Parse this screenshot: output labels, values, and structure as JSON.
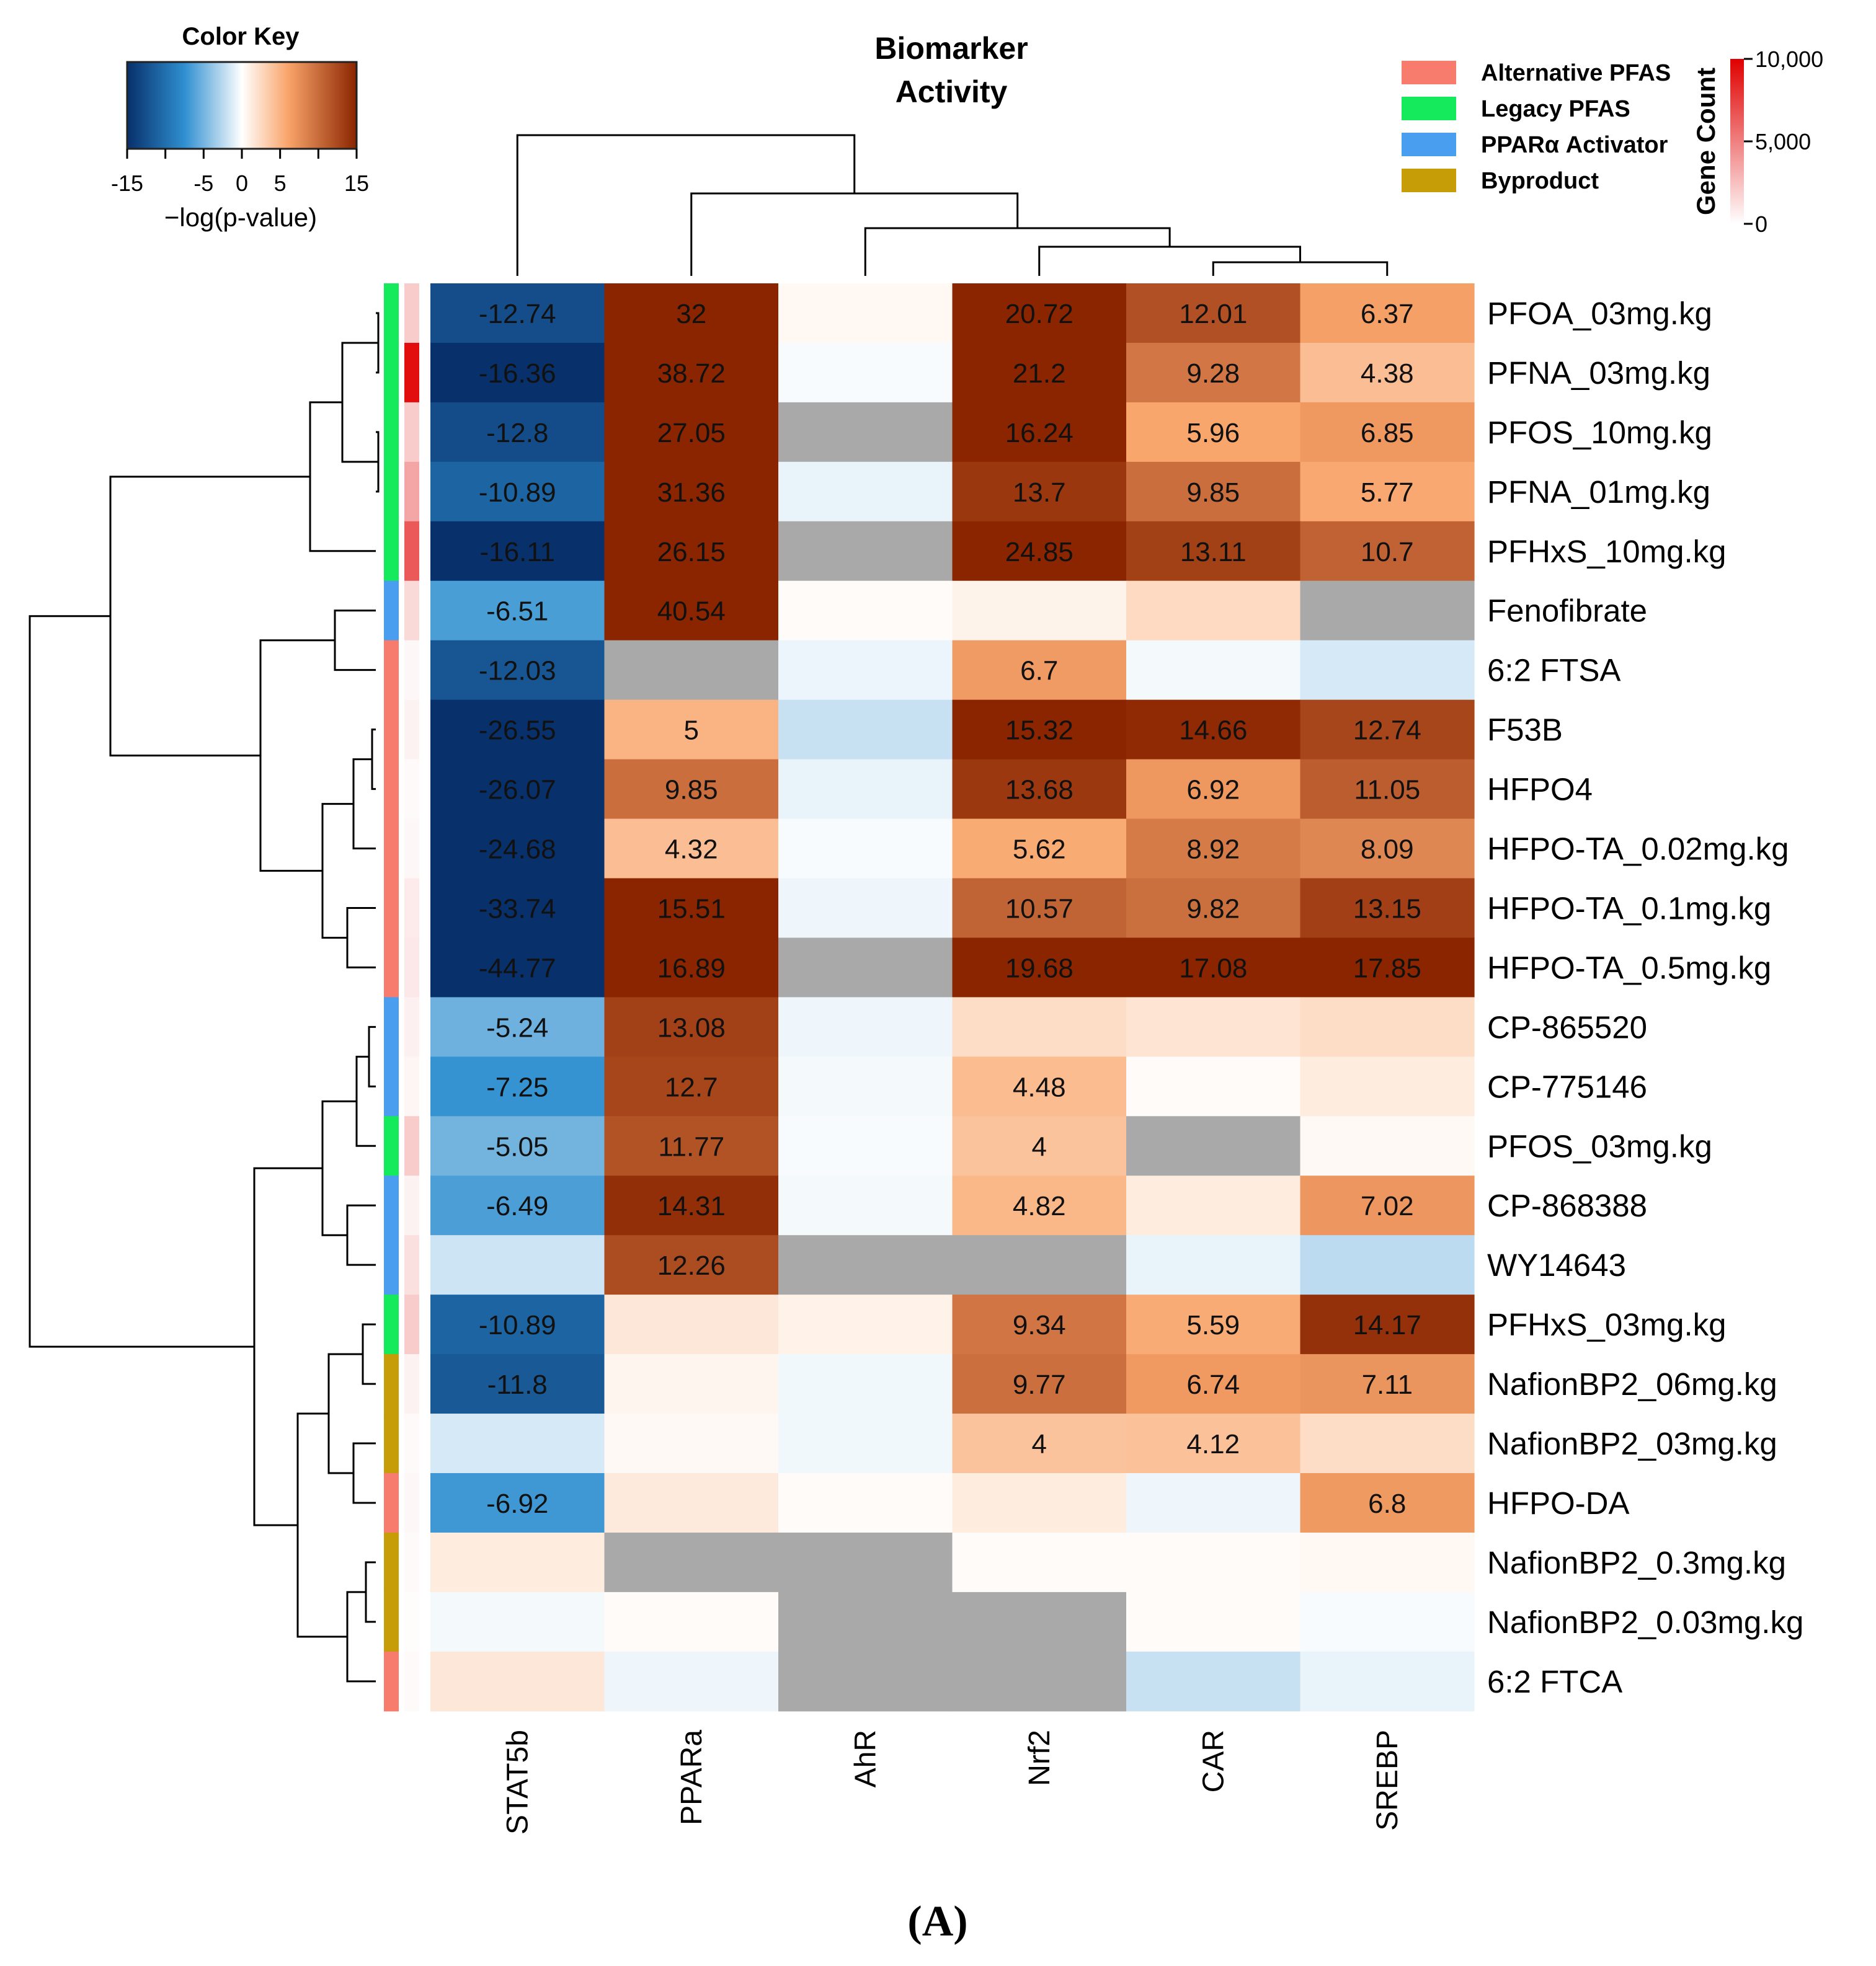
{
  "chart_data": {
    "type": "heatmap",
    "title": "Biomarker Activity",
    "panel_label": "(A)",
    "columns": [
      "STAT5b",
      "PPARa",
      "AhR",
      "Nrf2",
      "CAR",
      "SREBP"
    ],
    "rows": [
      {
        "label": "PFOA_03mg.kg",
        "group": "Legacy PFAS",
        "gene_count": 2000,
        "values": [
          -12.74,
          32,
          0.5,
          20.72,
          12.01,
          6.37
        ],
        "shown": [
          true,
          true,
          false,
          true,
          true,
          true
        ]
      },
      {
        "label": "PFNA_03mg.kg",
        "group": "Legacy PFAS",
        "gene_count": 9500,
        "values": [
          -16.36,
          38.72,
          -0.3,
          21.2,
          9.28,
          4.38
        ],
        "shown": [
          true,
          true,
          false,
          true,
          true,
          true
        ]
      },
      {
        "label": "PFOS_10mg.kg",
        "group": "Legacy PFAS",
        "gene_count": 2000,
        "values": [
          -12.8,
          27.05,
          null,
          16.24,
          5.96,
          6.85
        ],
        "shown": [
          true,
          true,
          false,
          true,
          true,
          true
        ]
      },
      {
        "label": "PFNA_01mg.kg",
        "group": "Legacy PFAS",
        "gene_count": 3500,
        "values": [
          -10.89,
          31.36,
          -0.8,
          13.7,
          9.85,
          5.77
        ],
        "shown": [
          true,
          true,
          false,
          true,
          true,
          true
        ]
      },
      {
        "label": "PFHxS_10mg.kg",
        "group": "Legacy PFAS",
        "gene_count": 6500,
        "values": [
          -16.11,
          26.15,
          null,
          24.85,
          13.11,
          10.7
        ],
        "shown": [
          true,
          true,
          false,
          true,
          true,
          true
        ]
      },
      {
        "label": "Fenofibrate",
        "group": "PPARα Activator",
        "gene_count": 1500,
        "values": [
          -6.51,
          40.54,
          0.3,
          0.8,
          2.5,
          null
        ],
        "shown": [
          true,
          true,
          false,
          false,
          false,
          false
        ]
      },
      {
        "label": "6:2 FTSA",
        "group": "Alternative PFAS",
        "gene_count": 300,
        "values": [
          -12.03,
          null,
          -0.7,
          6.7,
          -0.4,
          -1.5
        ],
        "shown": [
          true,
          false,
          false,
          true,
          false,
          false
        ]
      },
      {
        "label": "F53B",
        "group": "Alternative PFAS",
        "gene_count": 500,
        "values": [
          -26.55,
          5,
          -2,
          15.32,
          14.66,
          12.74
        ],
        "shown": [
          true,
          true,
          false,
          true,
          true,
          true
        ]
      },
      {
        "label": "HFPO4",
        "group": "Alternative PFAS",
        "gene_count": 200,
        "values": [
          -26.07,
          9.85,
          -0.8,
          13.68,
          6.92,
          11.05
        ],
        "shown": [
          true,
          true,
          false,
          true,
          true,
          true
        ]
      },
      {
        "label": "HFPO-TA_0.02mg.kg",
        "group": "Alternative PFAS",
        "gene_count": 300,
        "values": [
          -24.68,
          4.32,
          -0.3,
          5.62,
          8.92,
          8.09
        ],
        "shown": [
          true,
          true,
          false,
          true,
          true,
          true
        ]
      },
      {
        "label": "HFPO-TA_0.1mg.kg",
        "group": "Alternative PFAS",
        "gene_count": 800,
        "values": [
          -33.74,
          15.51,
          -0.6,
          10.57,
          9.82,
          13.15
        ],
        "shown": [
          true,
          true,
          false,
          true,
          true,
          true
        ]
      },
      {
        "label": "HFPO-TA_0.5mg.kg",
        "group": "Alternative PFAS",
        "gene_count": 900,
        "values": [
          -44.77,
          16.89,
          null,
          19.68,
          17.08,
          17.85
        ],
        "shown": [
          true,
          true,
          false,
          true,
          true,
          true
        ]
      },
      {
        "label": "CP-865520",
        "group": "PPARα Activator",
        "gene_count": 600,
        "values": [
          -5.24,
          13.08,
          -0.6,
          2.3,
          1.8,
          2.3
        ],
        "shown": [
          true,
          true,
          false,
          false,
          false,
          false
        ]
      },
      {
        "label": "CP-775146",
        "group": "PPARα Activator",
        "gene_count": 400,
        "values": [
          -7.25,
          12.7,
          -0.4,
          4.48,
          0.3,
          1.3
        ],
        "shown": [
          true,
          true,
          false,
          true,
          false,
          false
        ]
      },
      {
        "label": "PFOS_03mg.kg",
        "group": "Legacy PFAS",
        "gene_count": 2000,
        "values": [
          -5.05,
          11.77,
          -0.3,
          4,
          null,
          0.4
        ],
        "shown": [
          true,
          true,
          false,
          true,
          false,
          false
        ]
      },
      {
        "label": "CP-868388",
        "group": "PPARα Activator",
        "gene_count": 500,
        "values": [
          -6.49,
          14.31,
          -0.4,
          4.82,
          1.3,
          7.02
        ],
        "shown": [
          true,
          true,
          false,
          true,
          false,
          true
        ]
      },
      {
        "label": "WY14643",
        "group": "PPARα Activator",
        "gene_count": 1200,
        "values": [
          -1.8,
          12.26,
          null,
          null,
          -0.8,
          -2.4
        ],
        "shown": [
          false,
          true,
          false,
          false,
          false,
          false
        ]
      },
      {
        "label": "PFHxS_03mg.kg",
        "group": "Legacy PFAS",
        "gene_count": 2000,
        "values": [
          -10.89,
          1.6,
          0.9,
          9.34,
          5.59,
          14.17
        ],
        "shown": [
          true,
          false,
          false,
          true,
          true,
          true
        ]
      },
      {
        "label": "NafionBP2_06mg.kg",
        "group": "Byproduct",
        "gene_count": 500,
        "values": [
          -11.8,
          0.7,
          -0.5,
          9.77,
          6.74,
          7.11
        ],
        "shown": [
          true,
          false,
          false,
          true,
          true,
          true
        ]
      },
      {
        "label": "NafionBP2_03mg.kg",
        "group": "Byproduct",
        "gene_count": 200,
        "values": [
          -1.5,
          0.4,
          -0.5,
          4,
          4.12,
          2.3
        ],
        "shown": [
          false,
          false,
          false,
          true,
          true,
          false
        ]
      },
      {
        "label": "HFPO-DA",
        "group": "Alternative PFAS",
        "gene_count": 300,
        "values": [
          -6.92,
          1.4,
          0.3,
          1.3,
          -0.6,
          6.8
        ],
        "shown": [
          true,
          false,
          false,
          false,
          false,
          true
        ]
      },
      {
        "label": "NafionBP2_0.3mg.kg",
        "group": "Byproduct",
        "gene_count": 200,
        "values": [
          1.3,
          null,
          null,
          0.3,
          0.3,
          0.5
        ],
        "shown": [
          false,
          false,
          false,
          false,
          false,
          false
        ]
      },
      {
        "label": "NafionBP2_0.03mg.kg",
        "group": "Byproduct",
        "gene_count": 100,
        "values": [
          -0.4,
          0.3,
          null,
          null,
          0.3,
          -0.3
        ],
        "shown": [
          false,
          false,
          false,
          false,
          false,
          false
        ]
      },
      {
        "label": "6:2 FTCA",
        "group": "Alternative PFAS",
        "gene_count": 200,
        "values": [
          1.6,
          -0.6,
          null,
          null,
          -2,
          -0.8
        ],
        "shown": [
          false,
          false,
          false,
          false,
          false,
          false
        ]
      }
    ],
    "color_key": {
      "title": "Color Key",
      "xlabel": "−log(p-value)",
      "range": [
        -15,
        15
      ],
      "ticks": [
        -15,
        -5,
        0,
        5,
        15
      ],
      "ticks_unlabeled": [
        -10,
        10
      ],
      "colors": {
        "low": "#08306b",
        "mid_low": "#2f8fd0",
        "mid": "#ffffff",
        "mid_high": "#f9a56b",
        "high": "#8b2500"
      },
      "missing_color": "#a9a9a9"
    },
    "legend": [
      {
        "label": "Alternative PFAS",
        "color": "#f87c6e"
      },
      {
        "label": "Legacy PFAS",
        "color": "#15ea5d"
      },
      {
        "label": "PPARα Activator",
        "color": "#4a9ef0"
      },
      {
        "label": "Byproduct",
        "color": "#c69c07"
      }
    ],
    "gene_count_key": {
      "title": "Gene Count",
      "range": [
        0,
        10000
      ],
      "ticks": [
        "0",
        "5,000",
        "10,000"
      ],
      "tick_values": [
        0,
        5000,
        10000
      ],
      "color_low": "#ffffff",
      "color_high": "#e00000"
    }
  }
}
